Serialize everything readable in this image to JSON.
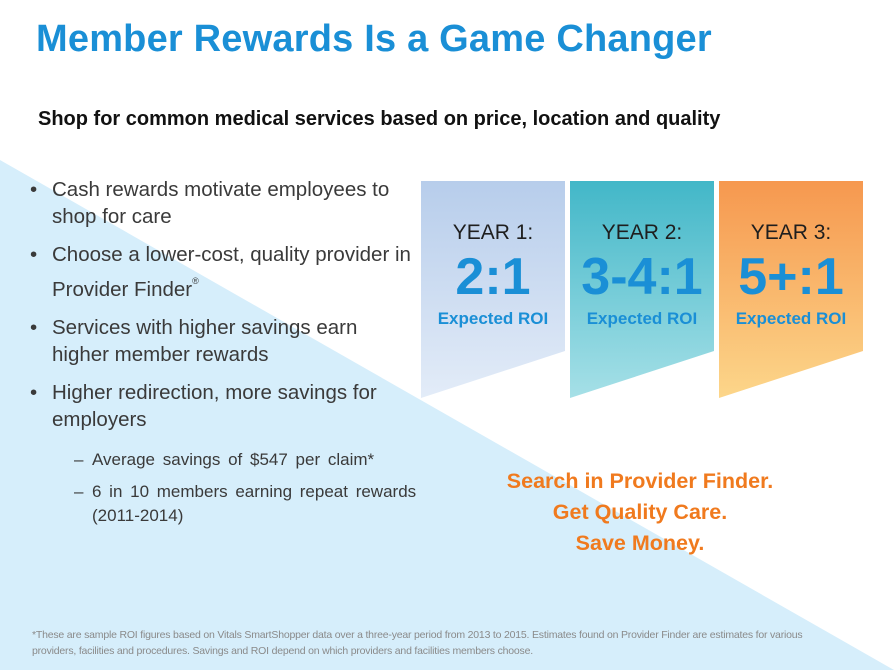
{
  "slide": {
    "title": "Member Rewards Is a Game Changer",
    "subtitle": "Shop for common medical services based on price, location and quality"
  },
  "bullets": [
    {
      "text": "Cash rewards motivate employees to shop for care"
    },
    {
      "text": "Choose a lower-cost, quality provider in Provider Finder",
      "superscript": "®"
    },
    {
      "text": "Services with higher savings earn higher member rewards"
    },
    {
      "text": "Higher redirection, more savings for employers"
    }
  ],
  "sub_bullets": [
    {
      "text": "Average savings of $547 per claim*"
    },
    {
      "text": "6 in 10 members earning repeat rewards (2011-2014)"
    }
  ],
  "cards": [
    {
      "year": "YEAR 1:",
      "ratio": "2:1",
      "label": "Expected ROI",
      "color": "#c5d7ef"
    },
    {
      "year": "YEAR 2:",
      "ratio": "3-4:1",
      "label": "Expected ROI",
      "color": "#5fc7d3"
    },
    {
      "year": "YEAR 3:",
      "ratio": "5+:1",
      "label": "Expected ROI",
      "color": "#f7a866"
    }
  ],
  "cta": {
    "line1": "Search in Provider Finder.",
    "line2": "Get Quality Care.",
    "line3": "Save Money."
  },
  "footnote": {
    "line1": "*These are sample ROI figures based on Vitals SmartShopper data over a three-year period from 2013 to 2015. Estimates found on Provider Finder are estimates for various",
    "line2": "providers, facilities and procedures. Savings and ROI depend on which providers and facilities members choose."
  },
  "colors": {
    "title": "#1a8fd6",
    "accent_orange": "#f07a1e",
    "background_wedge": "#d6eefb"
  }
}
